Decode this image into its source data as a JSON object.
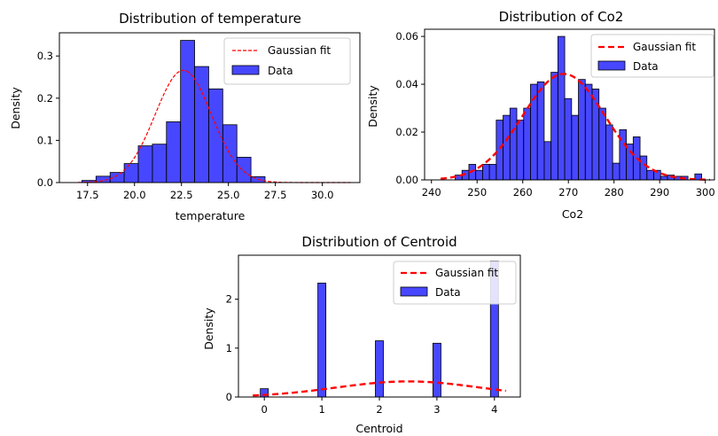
{
  "chart_data": [
    {
      "type": "bar",
      "title": "Distribution of temperature",
      "xlabel": "temperature",
      "ylabel": "Density",
      "xlim": [
        16.0,
        32.0
      ],
      "ylim": [
        0.0,
        0.355
      ],
      "xticks": [
        17.5,
        20.0,
        22.5,
        25.0,
        27.5,
        30.0
      ],
      "xtick_labels": [
        "17.5",
        "20.0",
        "22.5",
        "25.0",
        "27.5",
        "30.0"
      ],
      "yticks": [
        0.0,
        0.1,
        0.2,
        0.3
      ],
      "ytick_labels": [
        "0.0",
        "0.1",
        "0.2",
        "0.3"
      ],
      "bins": [
        {
          "x0": 17.2,
          "x1": 17.95,
          "value": 0.005
        },
        {
          "x0": 17.95,
          "x1": 18.7,
          "value": 0.015
        },
        {
          "x0": 18.7,
          "x1": 19.45,
          "value": 0.024
        },
        {
          "x0": 19.45,
          "x1": 20.2,
          "value": 0.045
        },
        {
          "x0": 20.2,
          "x1": 20.95,
          "value": 0.087
        },
        {
          "x0": 20.95,
          "x1": 21.7,
          "value": 0.091
        },
        {
          "x0": 21.7,
          "x1": 22.45,
          "value": 0.144
        },
        {
          "x0": 22.45,
          "x1": 23.2,
          "value": 0.337
        },
        {
          "x0": 23.2,
          "x1": 23.95,
          "value": 0.275
        },
        {
          "x0": 23.95,
          "x1": 24.7,
          "value": 0.222
        },
        {
          "x0": 24.7,
          "x1": 25.45,
          "value": 0.137
        },
        {
          "x0": 25.45,
          "x1": 26.2,
          "value": 0.06
        },
        {
          "x0": 26.2,
          "x1": 26.95,
          "value": 0.014
        }
      ],
      "gaussian_fit": {
        "mean": 22.6,
        "std": 1.5,
        "x_range": [
          17.0,
          31.5
        ],
        "style": "dashed-thin"
      },
      "legend": {
        "position": "upper right",
        "entries": [
          "Gaussian fit",
          "Data"
        ]
      }
    },
    {
      "type": "bar",
      "title": "Distribution of Co2",
      "xlabel": "Co2",
      "ylabel": "Density",
      "xlim": [
        238.5,
        302.0
      ],
      "ylim": [
        0.0,
        0.063
      ],
      "xticks": [
        240,
        250,
        260,
        270,
        280,
        290,
        300
      ],
      "xtick_labels": [
        "240",
        "250",
        "260",
        "270",
        "280",
        "290",
        "300"
      ],
      "yticks": [
        0.0,
        0.02,
        0.04,
        0.06
      ],
      "ytick_labels": [
        "0.00",
        "0.02",
        "0.04",
        "0.06"
      ],
      "bins": [
        {
          "x0": 245.2,
          "x1": 246.7,
          "value": 0.002
        },
        {
          "x0": 246.7,
          "x1": 248.2,
          "value": 0.004
        },
        {
          "x0": 248.2,
          "x1": 249.7,
          "value": 0.0065
        },
        {
          "x0": 249.7,
          "x1": 251.2,
          "value": 0.004
        },
        {
          "x0": 251.2,
          "x1": 252.7,
          "value": 0.0065
        },
        {
          "x0": 252.7,
          "x1": 254.2,
          "value": 0.0065
        },
        {
          "x0": 254.2,
          "x1": 255.7,
          "value": 0.025
        },
        {
          "x0": 255.7,
          "x1": 257.2,
          "value": 0.027
        },
        {
          "x0": 257.2,
          "x1": 258.7,
          "value": 0.03
        },
        {
          "x0": 258.7,
          "x1": 260.2,
          "value": 0.025
        },
        {
          "x0": 260.2,
          "x1": 261.7,
          "value": 0.03
        },
        {
          "x0": 261.7,
          "x1": 263.2,
          "value": 0.04
        },
        {
          "x0": 263.2,
          "x1": 264.7,
          "value": 0.041
        },
        {
          "x0": 264.7,
          "x1": 266.2,
          "value": 0.016
        },
        {
          "x0": 266.2,
          "x1": 267.7,
          "value": 0.045
        },
        {
          "x0": 267.7,
          "x1": 269.2,
          "value": 0.06
        },
        {
          "x0": 269.2,
          "x1": 270.7,
          "value": 0.034
        },
        {
          "x0": 270.7,
          "x1": 272.2,
          "value": 0.027
        },
        {
          "x0": 272.2,
          "x1": 273.7,
          "value": 0.042
        },
        {
          "x0": 273.7,
          "x1": 275.2,
          "value": 0.04
        },
        {
          "x0": 275.2,
          "x1": 276.7,
          "value": 0.038
        },
        {
          "x0": 276.7,
          "x1": 278.2,
          "value": 0.03
        },
        {
          "x0": 278.2,
          "x1": 279.7,
          "value": 0.023
        },
        {
          "x0": 279.7,
          "x1": 281.2,
          "value": 0.007
        },
        {
          "x0": 281.2,
          "x1": 282.7,
          "value": 0.021
        },
        {
          "x0": 282.7,
          "x1": 284.2,
          "value": 0.015
        },
        {
          "x0": 284.2,
          "x1": 285.7,
          "value": 0.018
        },
        {
          "x0": 285.7,
          "x1": 287.2,
          "value": 0.01
        },
        {
          "x0": 287.2,
          "x1": 288.7,
          "value": 0.004
        },
        {
          "x0": 288.7,
          "x1": 290.2,
          "value": 0.004
        },
        {
          "x0": 290.2,
          "x1": 291.7,
          "value": 0.0015
        },
        {
          "x0": 291.7,
          "x1": 293.2,
          "value": 0.002
        },
        {
          "x0": 293.2,
          "x1": 294.7,
          "value": 0.0015
        },
        {
          "x0": 294.7,
          "x1": 296.2,
          "value": 0.0015
        },
        {
          "x0": 296.2,
          "x1": 297.7,
          "value": 0.0
        },
        {
          "x0": 297.7,
          "x1": 299.2,
          "value": 0.0025
        }
      ],
      "gaussian_fit": {
        "mean": 269.0,
        "std": 9.0,
        "x_range": [
          242.0,
          301.0
        ],
        "style": "dashed-thick"
      },
      "legend": {
        "position": "upper right",
        "entries": [
          "Gaussian fit",
          "Data"
        ]
      }
    },
    {
      "type": "bar",
      "title": "Distribution of Centroid",
      "xlabel": "Centroid",
      "ylabel": "Density",
      "xlim": [
        -0.45,
        4.45
      ],
      "ylim": [
        0.0,
        2.9
      ],
      "xticks": [
        0,
        1,
        2,
        3,
        4
      ],
      "xtick_labels": [
        "0",
        "1",
        "2",
        "3",
        "4"
      ],
      "yticks": [
        0,
        1,
        2
      ],
      "ytick_labels": [
        "0",
        "1",
        "2"
      ],
      "bins": [
        {
          "x0": -0.07,
          "x1": 0.07,
          "value": 0.17
        },
        {
          "x0": 0.93,
          "x1": 1.07,
          "value": 2.33
        },
        {
          "x0": 1.93,
          "x1": 2.07,
          "value": 1.15
        },
        {
          "x0": 2.93,
          "x1": 3.07,
          "value": 1.1
        },
        {
          "x0": 3.93,
          "x1": 4.07,
          "value": 2.78
        }
      ],
      "gaussian_fit": {
        "mean": 2.5,
        "std": 1.25,
        "x_range": [
          -0.2,
          4.2
        ],
        "style": "dashed-thick"
      },
      "legend": {
        "position": "upper right",
        "entries": [
          "Gaussian fit",
          "Data"
        ]
      }
    }
  ],
  "colors": {
    "bar_fill": "#0000ff",
    "bar_fill_opacity": 0.72,
    "bar_edge": "#000000",
    "fit_line": "#ff0000",
    "axis": "#000000"
  }
}
